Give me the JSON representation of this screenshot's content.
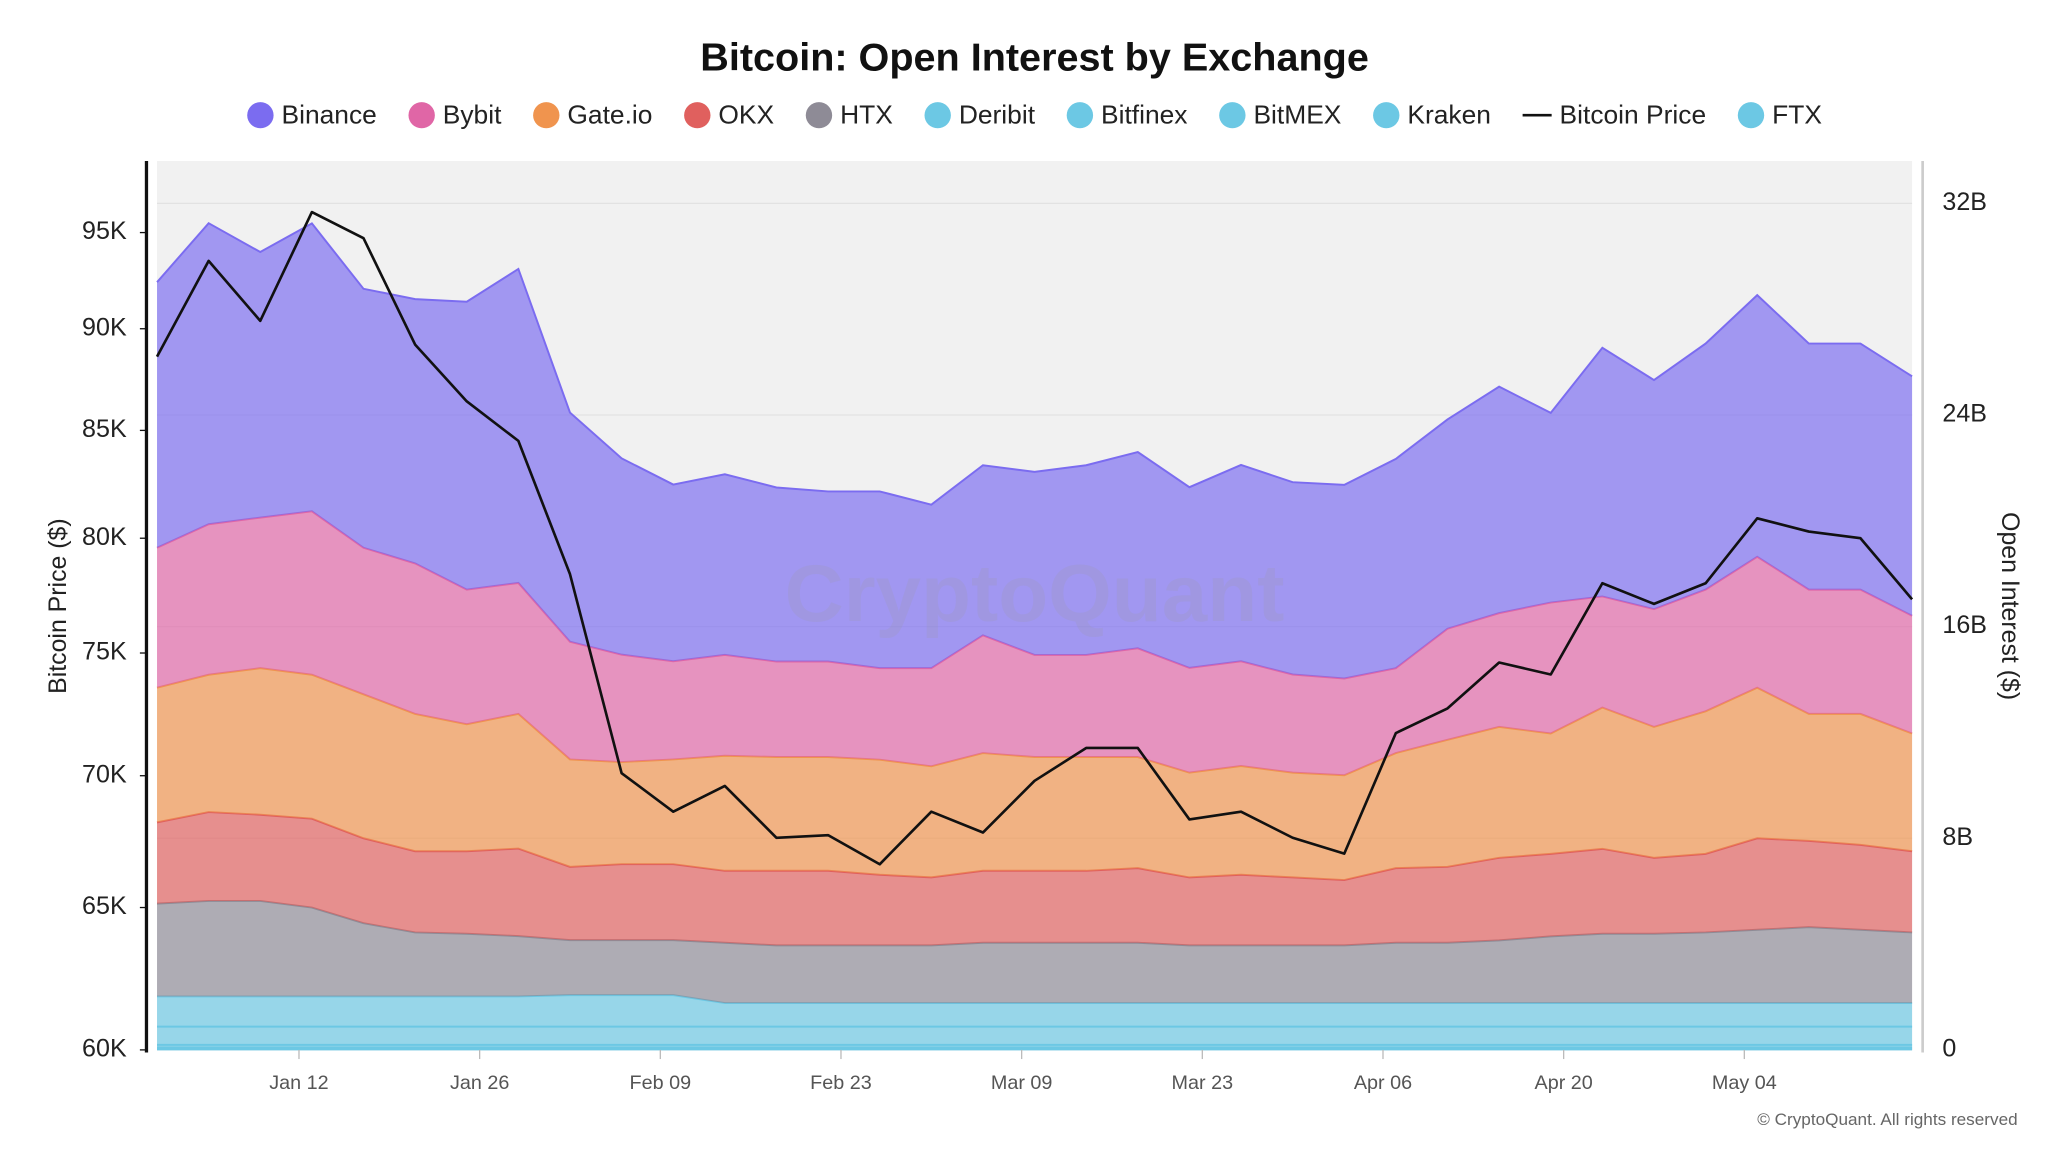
{
  "chart_data": {
    "type": "area",
    "title": "Bitcoin: Open Interest by Exchange",
    "watermark": "CryptoQuant",
    "footer": "© CryptoQuant. All rights reserved",
    "y_label": "Bitcoin Price ($)",
    "y2_label": "Open Interest ($)",
    "y_scale": "log",
    "grid": true,
    "legend": "top",
    "x": [
      "Jan 01",
      "Jan 05",
      "Jan 09",
      "Jan 13",
      "Jan 17",
      "Jan 21",
      "Jan 25",
      "Jan 29",
      "Feb 02",
      "Feb 06",
      "Feb 10",
      "Feb 14",
      "Feb 18",
      "Feb 22",
      "Feb 26",
      "Mar 02",
      "Mar 06",
      "Mar 10",
      "Mar 14",
      "Mar 18",
      "Mar 22",
      "Mar 26",
      "Mar 30",
      "Apr 03",
      "Apr 07",
      "Apr 11",
      "Apr 15",
      "Apr 19",
      "Apr 23",
      "Apr 27",
      "May 01",
      "May 05",
      "May 09",
      "May 13",
      "May 17"
    ],
    "xticks": [
      "Jan 12",
      "Jan 26",
      "Feb 09",
      "Feb 23",
      "Mar 09",
      "Mar 23",
      "Apr 06",
      "Apr 20",
      "May 04"
    ],
    "ylim": [
      60000,
      98900
    ],
    "yticks": [
      {
        "value": 60000,
        "label": "60K"
      },
      {
        "value": 65000,
        "label": "65K"
      },
      {
        "value": 70000,
        "label": "70K"
      },
      {
        "value": 75000,
        "label": "75K"
      },
      {
        "value": 80000,
        "label": "80K"
      },
      {
        "value": 85000,
        "label": "85K"
      },
      {
        "value": 90000,
        "label": "90K"
      },
      {
        "value": 95000,
        "label": "95K"
      }
    ],
    "y2lim": [
      0,
      33.6
    ],
    "y2ticks": [
      0,
      {
        "value": 8,
        "label": "8B"
      },
      {
        "value": 16,
        "label": "16B"
      },
      {
        "value": 24,
        "label": "24B"
      },
      {
        "value": 32,
        "label": "32B"
      }
    ],
    "series": [
      {
        "name": "Binance",
        "color": "#7b6cf0",
        "axis": "y2",
        "values": [
          10.04,
          11.38,
          10.04,
          10.88,
          9.79,
          9.99,
          10.88,
          11.87,
          8.66,
          7.42,
          6.68,
          6.83,
          6.58,
          6.43,
          6.68,
          6.18,
          6.43,
          6.92,
          7.17,
          7.42,
          6.83,
          7.42,
          7.27,
          7.32,
          7.91,
          7.91,
          8.56,
          7.17,
          9.4,
          8.66,
          9.3,
          9.89,
          9.3,
          9.3,
          9.05
        ]
      },
      {
        "name": "Bybit",
        "color": "#e066a6",
        "axis": "y2",
        "values": [
          5.29,
          5.69,
          5.69,
          6.18,
          5.54,
          5.69,
          5.09,
          4.95,
          4.45,
          4.06,
          3.71,
          3.81,
          3.61,
          3.61,
          3.46,
          3.71,
          4.45,
          3.86,
          3.86,
          4.11,
          3.96,
          3.96,
          3.71,
          3.66,
          3.21,
          4.2,
          4.3,
          4.95,
          4.2,
          4.45,
          4.6,
          4.95,
          4.7,
          4.7,
          4.45
        ]
      },
      {
        "name": "Gate.io",
        "color": "#f0944e",
        "axis": "y2",
        "values": [
          5.09,
          5.19,
          5.54,
          5.44,
          5.44,
          5.19,
          4.8,
          5.09,
          4.06,
          3.86,
          3.96,
          4.35,
          4.3,
          4.3,
          4.35,
          4.2,
          4.45,
          4.3,
          4.3,
          4.2,
          3.96,
          4.11,
          3.96,
          3.96,
          4.35,
          4.8,
          4.95,
          4.55,
          5.34,
          4.95,
          5.39,
          5.69,
          4.8,
          4.95,
          4.45
        ]
      },
      {
        "name": "OKX",
        "color": "#e0605e",
        "axis": "y2",
        "values": [
          3.07,
          3.36,
          3.26,
          3.36,
          3.21,
          3.07,
          3.12,
          3.31,
          2.77,
          2.87,
          2.87,
          2.72,
          2.82,
          2.82,
          2.67,
          2.57,
          2.72,
          2.72,
          2.72,
          2.82,
          2.57,
          2.67,
          2.57,
          2.47,
          2.82,
          2.87,
          3.12,
          3.12,
          3.21,
          2.87,
          2.97,
          3.46,
          3.26,
          3.21,
          3.07
        ]
      },
      {
        "name": "HTX",
        "color": "#8e8b96",
        "axis": "y2",
        "values": [
          3.51,
          3.61,
          3.61,
          3.36,
          2.77,
          2.42,
          2.37,
          2.28,
          2.08,
          2.08,
          2.08,
          2.28,
          2.18,
          2.18,
          2.18,
          2.18,
          2.28,
          2.28,
          2.28,
          2.28,
          2.18,
          2.18,
          2.18,
          2.18,
          2.28,
          2.28,
          2.37,
          2.52,
          2.62,
          2.62,
          2.67,
          2.77,
          2.87,
          2.77,
          2.67
        ]
      },
      {
        "name": "Deribit",
        "color": "#6cc8e4",
        "axis": "y2",
        "values": [
          1.14,
          1.14,
          1.14,
          1.14,
          1.14,
          1.14,
          1.14,
          1.14,
          1.19,
          1.19,
          1.19,
          0.89,
          0.89,
          0.89,
          0.89,
          0.89,
          0.89,
          0.89,
          0.89,
          0.89,
          0.89,
          0.89,
          0.89,
          0.89,
          0.89,
          0.89,
          0.89,
          0.89,
          0.89,
          0.89,
          0.89,
          0.89,
          0.89,
          0.89,
          0.89
        ]
      },
      {
        "name": "Bitfinex",
        "color": "#6cc8e4",
        "axis": "y2",
        "values": [
          0.69,
          0.69,
          0.69,
          0.69,
          0.69,
          0.69,
          0.69,
          0.69,
          0.69,
          0.69,
          0.69,
          0.69,
          0.69,
          0.69,
          0.69,
          0.69,
          0.69,
          0.69,
          0.69,
          0.69,
          0.69,
          0.69,
          0.69,
          0.69,
          0.69,
          0.69,
          0.69,
          0.69,
          0.69,
          0.69,
          0.69,
          0.69,
          0.69,
          0.69,
          0.69
        ]
      },
      {
        "name": "BitMEX",
        "color": "#6cc8e4",
        "axis": "y2",
        "values": [
          0.1,
          0.1,
          0.1,
          0.1,
          0.1,
          0.1,
          0.1,
          0.1,
          0.1,
          0.1,
          0.1,
          0.1,
          0.1,
          0.1,
          0.1,
          0.1,
          0.1,
          0.1,
          0.1,
          0.1,
          0.1,
          0.1,
          0.1,
          0.1,
          0.1,
          0.1,
          0.1,
          0.1,
          0.1,
          0.1,
          0.1,
          0.1,
          0.1,
          0.1,
          0.1
        ]
      },
      {
        "name": "Kraken",
        "color": "#6cc8e4",
        "axis": "y2",
        "values": [
          0.07,
          0.07,
          0.07,
          0.07,
          0.07,
          0.07,
          0.07,
          0.07,
          0.07,
          0.07,
          0.07,
          0.07,
          0.07,
          0.07,
          0.07,
          0.07,
          0.07,
          0.07,
          0.07,
          0.07,
          0.07,
          0.07,
          0.07,
          0.07,
          0.07,
          0.07,
          0.07,
          0.07,
          0.07,
          0.07,
          0.07,
          0.07,
          0.07,
          0.07,
          0.07
        ]
      },
      {
        "name": "Bitcoin Price",
        "color": "#111111",
        "type": "line",
        "axis": "y",
        "values": [
          88600,
          93500,
          90400,
          96100,
          94700,
          89200,
          86400,
          84500,
          78400,
          70100,
          68600,
          69600,
          67600,
          67700,
          66600,
          68600,
          67800,
          69800,
          71100,
          71100,
          68300,
          68600,
          67600,
          67000,
          71700,
          72700,
          74600,
          74100,
          78000,
          77100,
          78000,
          80900,
          80300,
          80000,
          77300
        ]
      },
      {
        "name": "FTX",
        "color": "#6cc8e4",
        "axis": "y2",
        "values": [
          0.02,
          0.02,
          0.02,
          0.02,
          0.02,
          0.02,
          0.02,
          0.02,
          0.02,
          0.02,
          0.02,
          0.02,
          0.02,
          0.02,
          0.02,
          0.02,
          0.02,
          0.02,
          0.02,
          0.02,
          0.02,
          0.02,
          0.02,
          0.02,
          0.02,
          0.02,
          0.02,
          0.02,
          0.02,
          0.02,
          0.02,
          0.02,
          0.02,
          0.02,
          0.02
        ]
      }
    ]
  }
}
